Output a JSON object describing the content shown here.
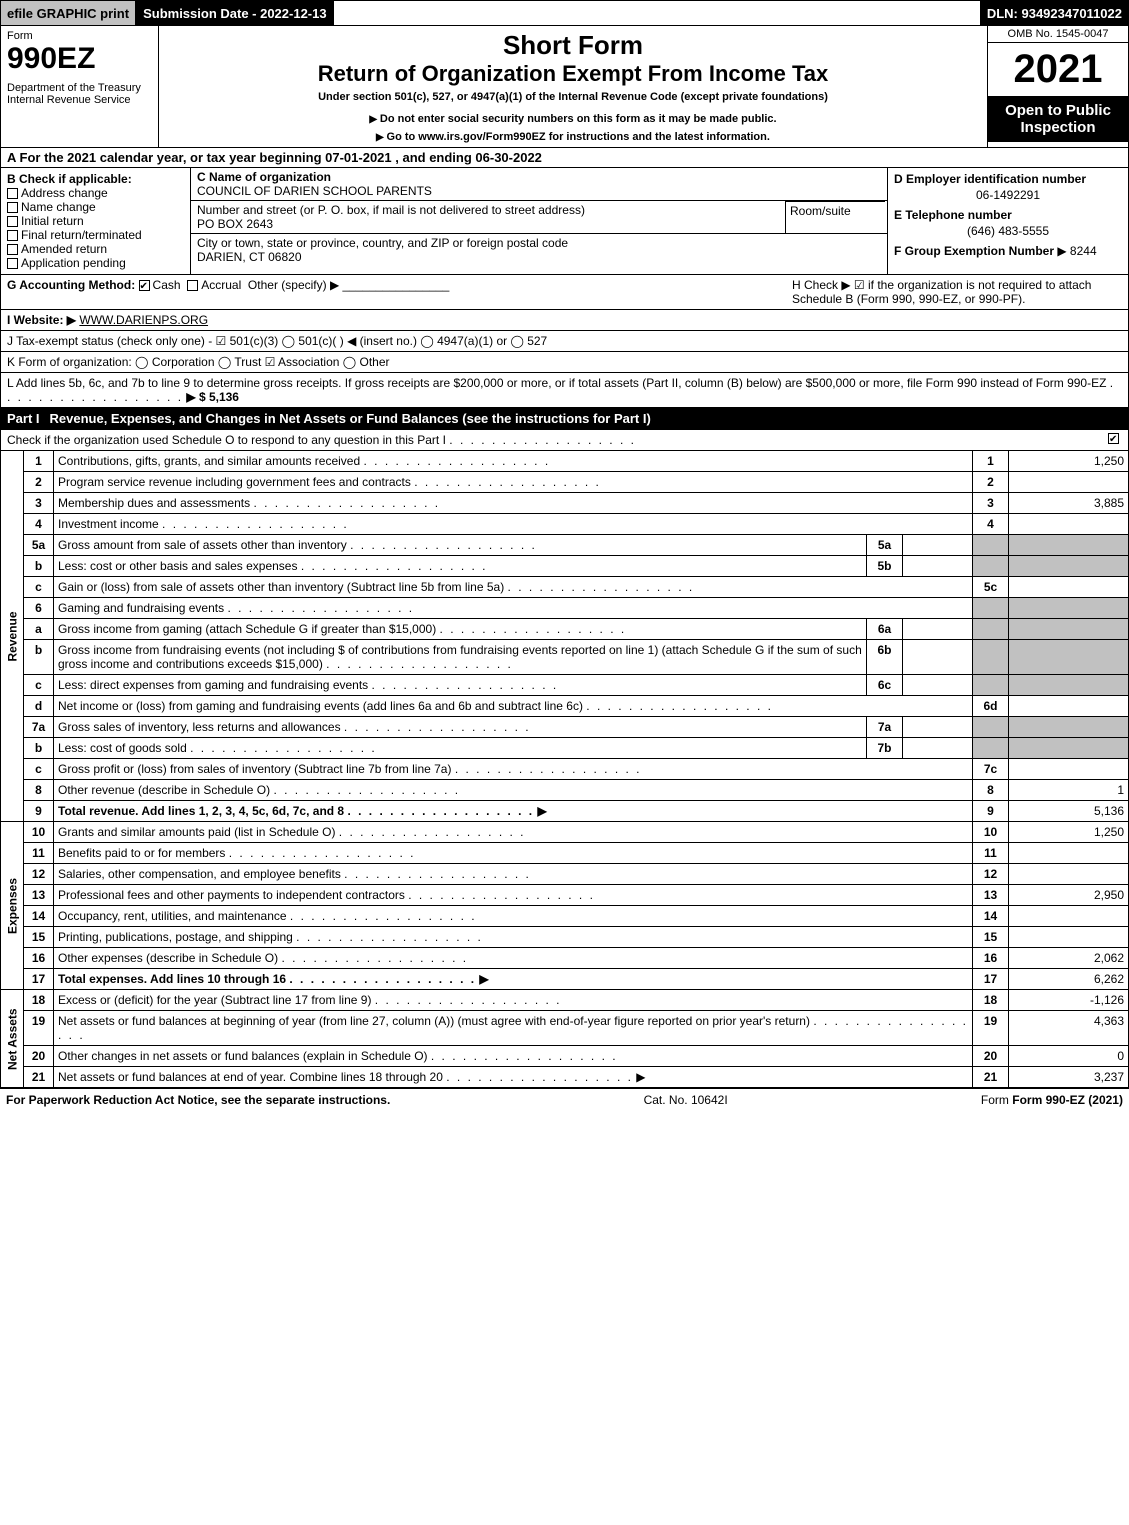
{
  "topbar": {
    "efile": "efile GRAPHIC print",
    "submission": "Submission Date - 2022-12-13",
    "dln": "DLN: 93492347011022"
  },
  "header": {
    "form_word": "Form",
    "form_no": "990EZ",
    "dept": "Department of the Treasury\nInternal Revenue Service",
    "short_form": "Short Form",
    "title": "Return of Organization Exempt From Income Tax",
    "subtitle": "Under section 501(c), 527, or 4947(a)(1) of the Internal Revenue Code (except private foundations)",
    "warn1": "Do not enter social security numbers on this form as it may be made public.",
    "warn2": "Go to www.irs.gov/Form990EZ for instructions and the latest information.",
    "omb": "OMB No. 1545-0047",
    "year": "2021",
    "inspection": "Open to Public Inspection"
  },
  "row_a": "A  For the 2021 calendar year, or tax year beginning 07-01-2021 , and ending 06-30-2022",
  "b_section": {
    "label": "B  Check if applicable:",
    "items": [
      "Address change",
      "Name change",
      "Initial return",
      "Final return/terminated",
      "Amended return",
      "Application pending"
    ]
  },
  "c_section": {
    "name_label": "C Name of organization",
    "name": "COUNCIL OF DARIEN SCHOOL PARENTS",
    "street_label": "Number and street (or P. O. box, if mail is not delivered to street address)",
    "street": "PO BOX 2643",
    "room_label": "Room/suite",
    "city_label": "City or town, state or province, country, and ZIP or foreign postal code",
    "city": "DARIEN, CT  06820"
  },
  "d_section": {
    "ein_label": "D Employer identification number",
    "ein": "06-1492291",
    "tel_label": "E Telephone number",
    "tel": "(646) 483-5555",
    "group_label": "F Group Exemption Number",
    "group": "▶ 8244"
  },
  "g_line": {
    "label": "G Accounting Method:",
    "cash": "Cash",
    "accrual": "Accrual",
    "other": "Other (specify) ▶"
  },
  "h_line": "H  Check ▶ ☑ if the organization is not required to attach Schedule B (Form 990, 990-EZ, or 990-PF).",
  "i_line": {
    "label": "I Website: ▶",
    "value": "WWW.DARIENPS.ORG"
  },
  "j_line": "J Tax-exempt status (check only one) - ☑ 501(c)(3)  ◯ 501(c)(  ) ◀ (insert no.)  ◯ 4947(a)(1) or  ◯ 527",
  "k_line": "K Form of organization:   ◯ Corporation   ◯ Trust   ☑ Association   ◯ Other",
  "l_line": {
    "text": "L Add lines 5b, 6c, and 7b to line 9 to determine gross receipts. If gross receipts are $200,000 or more, or if total assets (Part II, column (B) below) are $500,000 or more, file Form 990 instead of Form 990-EZ",
    "amount": "▶ $ 5,136"
  },
  "part1": {
    "title": "Part I",
    "heading": "Revenue, Expenses, and Changes in Net Assets or Fund Balances (see the instructions for Part I)",
    "check": "Check if the organization used Schedule O to respond to any question in this Part I"
  },
  "sections": {
    "revenue": "Revenue",
    "expenses": "Expenses",
    "netassets": "Net Assets"
  },
  "lines": [
    {
      "sec": "rev",
      "n": "1",
      "d": "Contributions, gifts, grants, and similar amounts received",
      "box": "1",
      "amt": "1,250"
    },
    {
      "sec": "rev",
      "n": "2",
      "d": "Program service revenue including government fees and contracts",
      "box": "2",
      "amt": ""
    },
    {
      "sec": "rev",
      "n": "3",
      "d": "Membership dues and assessments",
      "box": "3",
      "amt": "3,885"
    },
    {
      "sec": "rev",
      "n": "4",
      "d": "Investment income",
      "box": "4",
      "amt": ""
    },
    {
      "sec": "rev",
      "n": "5a",
      "d": "Gross amount from sale of assets other than inventory",
      "mini": "5a",
      "miniamt": "",
      "box": "",
      "amt": "",
      "shade": true
    },
    {
      "sec": "rev",
      "n": "b",
      "d": "Less: cost or other basis and sales expenses",
      "mini": "5b",
      "miniamt": "",
      "box": "",
      "amt": "",
      "shade": true
    },
    {
      "sec": "rev",
      "n": "c",
      "d": "Gain or (loss) from sale of assets other than inventory (Subtract line 5b from line 5a)",
      "box": "5c",
      "amt": ""
    },
    {
      "sec": "rev",
      "n": "6",
      "d": "Gaming and fundraising events",
      "box": "",
      "amt": "",
      "shade": true,
      "nobr": true
    },
    {
      "sec": "rev",
      "n": "a",
      "d": "Gross income from gaming (attach Schedule G if greater than $15,000)",
      "mini": "6a",
      "miniamt": "",
      "box": "",
      "amt": "",
      "shade": true
    },
    {
      "sec": "rev",
      "n": "b",
      "d": "Gross income from fundraising events (not including $                   of contributions from fundraising events reported on line 1) (attach Schedule G if the sum of such gross income and contributions exceeds $15,000)",
      "mini": "6b",
      "miniamt": "",
      "box": "",
      "amt": "",
      "shade": true
    },
    {
      "sec": "rev",
      "n": "c",
      "d": "Less: direct expenses from gaming and fundraising events",
      "mini": "6c",
      "miniamt": "",
      "box": "",
      "amt": "",
      "shade": true
    },
    {
      "sec": "rev",
      "n": "d",
      "d": "Net income or (loss) from gaming and fundraising events (add lines 6a and 6b and subtract line 6c)",
      "box": "6d",
      "amt": ""
    },
    {
      "sec": "rev",
      "n": "7a",
      "d": "Gross sales of inventory, less returns and allowances",
      "mini": "7a",
      "miniamt": "",
      "box": "",
      "amt": "",
      "shade": true
    },
    {
      "sec": "rev",
      "n": "b",
      "d": "Less: cost of goods sold",
      "mini": "7b",
      "miniamt": "",
      "box": "",
      "amt": "",
      "shade": true
    },
    {
      "sec": "rev",
      "n": "c",
      "d": "Gross profit or (loss) from sales of inventory (Subtract line 7b from line 7a)",
      "box": "7c",
      "amt": ""
    },
    {
      "sec": "rev",
      "n": "8",
      "d": "Other revenue (describe in Schedule O)",
      "box": "8",
      "amt": "1"
    },
    {
      "sec": "rev",
      "n": "9",
      "d": "Total revenue. Add lines 1, 2, 3, 4, 5c, 6d, 7c, and 8",
      "box": "9",
      "amt": "5,136",
      "bold": true,
      "arrow": true
    },
    {
      "sec": "exp",
      "n": "10",
      "d": "Grants and similar amounts paid (list in Schedule O)",
      "box": "10",
      "amt": "1,250"
    },
    {
      "sec": "exp",
      "n": "11",
      "d": "Benefits paid to or for members",
      "box": "11",
      "amt": ""
    },
    {
      "sec": "exp",
      "n": "12",
      "d": "Salaries, other compensation, and employee benefits",
      "box": "12",
      "amt": ""
    },
    {
      "sec": "exp",
      "n": "13",
      "d": "Professional fees and other payments to independent contractors",
      "box": "13",
      "amt": "2,950"
    },
    {
      "sec": "exp",
      "n": "14",
      "d": "Occupancy, rent, utilities, and maintenance",
      "box": "14",
      "amt": ""
    },
    {
      "sec": "exp",
      "n": "15",
      "d": "Printing, publications, postage, and shipping",
      "box": "15",
      "amt": ""
    },
    {
      "sec": "exp",
      "n": "16",
      "d": "Other expenses (describe in Schedule O)",
      "box": "16",
      "amt": "2,062"
    },
    {
      "sec": "exp",
      "n": "17",
      "d": "Total expenses. Add lines 10 through 16",
      "box": "17",
      "amt": "6,262",
      "bold": true,
      "arrow": true
    },
    {
      "sec": "na",
      "n": "18",
      "d": "Excess or (deficit) for the year (Subtract line 17 from line 9)",
      "box": "18",
      "amt": "-1,126"
    },
    {
      "sec": "na",
      "n": "19",
      "d": "Net assets or fund balances at beginning of year (from line 27, column (A)) (must agree with end-of-year figure reported on prior year's return)",
      "box": "19",
      "amt": "4,363"
    },
    {
      "sec": "na",
      "n": "20",
      "d": "Other changes in net assets or fund balances (explain in Schedule O)",
      "box": "20",
      "amt": "0"
    },
    {
      "sec": "na",
      "n": "21",
      "d": "Net assets or fund balances at end of year. Combine lines 18 through 20",
      "box": "21",
      "amt": "3,237",
      "arrow": true
    }
  ],
  "footer": {
    "left": "For Paperwork Reduction Act Notice, see the separate instructions.",
    "mid": "Cat. No. 10642I",
    "right": "Form 990-EZ (2021)"
  }
}
